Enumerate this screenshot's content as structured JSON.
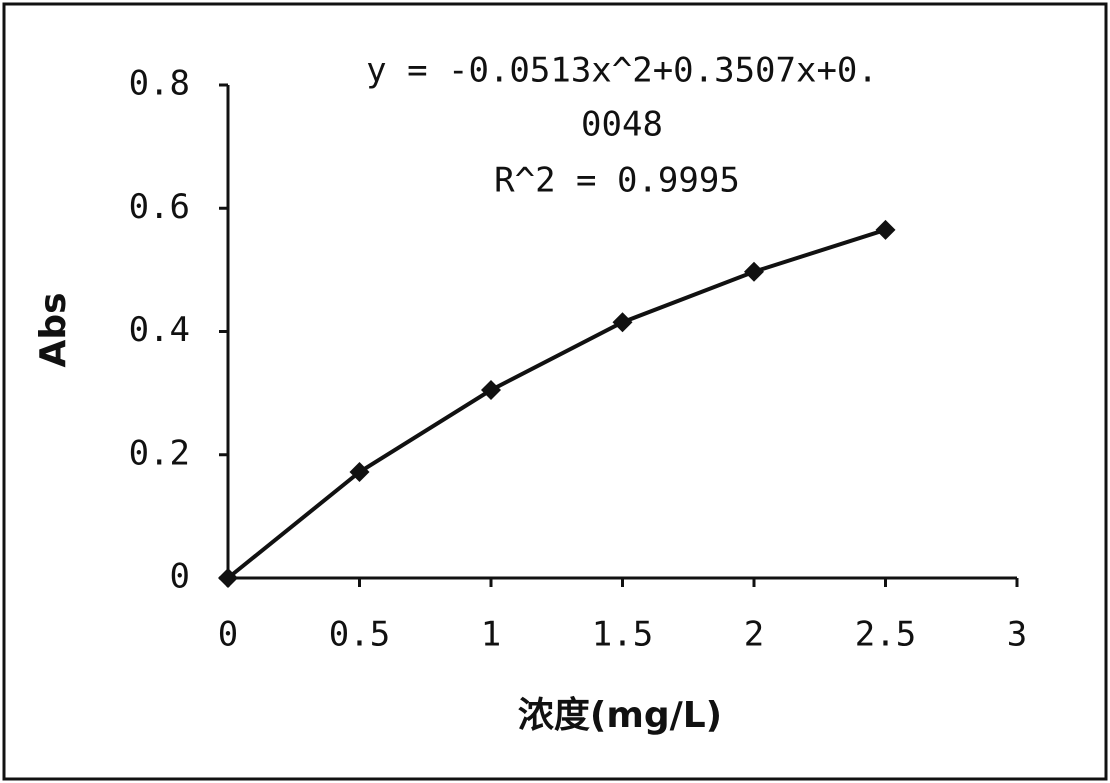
{
  "chart_data": {
    "type": "line",
    "x": [
      0,
      0.5,
      1,
      1.5,
      2,
      2.5
    ],
    "series": [
      {
        "color": "#111111",
        "values": [
          0,
          0.172,
          0.305,
          0.415,
          0.497,
          0.565
        ]
      }
    ],
    "xlim": [
      0,
      3
    ],
    "xticks": [
      0,
      0.5,
      1,
      1.5,
      2,
      2.5,
      3
    ],
    "ylim": [
      0,
      0.8
    ],
    "yticks": [
      0,
      0.2,
      0.4,
      0.6,
      0.8
    ],
    "xlabel": "浓度(mg/L)",
    "ylabel": "Abs",
    "annotations": [
      "y = -0.0513x^2+0.3507x+0.",
      "0048",
      "R^2 = 0.9995"
    ],
    "grid": false
  }
}
